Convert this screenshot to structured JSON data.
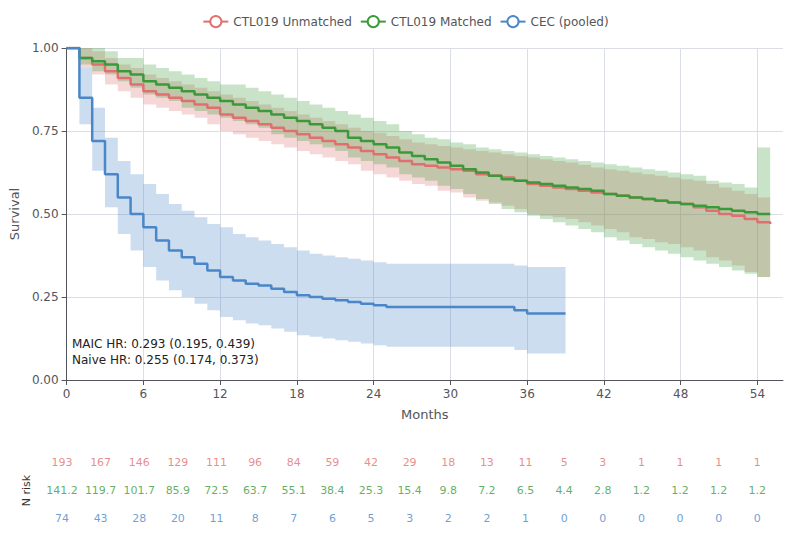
{
  "chart_data": {
    "type": "step",
    "xlabel": "Months",
    "ylabel": "Survival",
    "xlim": [
      0,
      56
    ],
    "ylim": [
      0.0,
      1.0
    ],
    "xticks": [
      0,
      6,
      12,
      18,
      24,
      30,
      36,
      42,
      48,
      54
    ],
    "yticks": [
      {
        "value": 0,
        "label": "0.00"
      },
      0.25,
      {
        "value": 0.5,
        "label": "0.50"
      },
      0.75,
      {
        "value": 1,
        "label": "1.00"
      }
    ],
    "grid": true,
    "annotation": "MAIC HR: 0.293 (0.195, 0.439)\nNaive HR: 0.255 (0.174, 0.373)",
    "risk_label": "N risk",
    "n_risk_x": [
      0,
      3,
      6,
      9,
      12,
      15,
      18,
      21,
      24,
      27,
      30,
      33,
      36,
      39,
      42,
      45,
      48,
      51,
      54
    ],
    "series": [
      {
        "name": "CTL019 Unmatched",
        "color": "#e07070",
        "x": [
          0,
          1,
          2,
          3,
          4,
          5,
          6,
          7,
          8,
          9,
          10,
          11,
          12,
          13,
          14,
          15,
          16,
          17,
          18,
          19,
          20,
          21,
          22,
          23,
          24,
          25,
          26,
          27,
          28,
          29,
          30,
          31,
          32,
          33,
          34,
          35,
          36,
          37,
          38,
          39,
          40,
          41,
          42,
          43,
          44,
          45,
          46,
          47,
          48,
          49,
          50,
          51,
          52,
          53,
          54,
          55
        ],
        "values": [
          1.0,
          0.97,
          0.95,
          0.93,
          0.91,
          0.89,
          0.87,
          0.86,
          0.85,
          0.84,
          0.83,
          0.82,
          0.8,
          0.79,
          0.78,
          0.77,
          0.76,
          0.75,
          0.74,
          0.73,
          0.72,
          0.71,
          0.7,
          0.69,
          0.68,
          0.67,
          0.66,
          0.65,
          0.645,
          0.64,
          0.635,
          0.63,
          0.62,
          0.615,
          0.61,
          0.6,
          0.59,
          0.585,
          0.58,
          0.575,
          0.57,
          0.565,
          0.56,
          0.555,
          0.55,
          0.545,
          0.54,
          0.535,
          0.53,
          0.52,
          0.51,
          0.5,
          0.495,
          0.485,
          0.475,
          0.47
        ],
        "lo": [
          1.0,
          0.94,
          0.92,
          0.89,
          0.87,
          0.85,
          0.83,
          0.82,
          0.81,
          0.8,
          0.79,
          0.77,
          0.75,
          0.74,
          0.73,
          0.72,
          0.71,
          0.7,
          0.69,
          0.68,
          0.67,
          0.66,
          0.65,
          0.63,
          0.62,
          0.61,
          0.6,
          0.59,
          0.585,
          0.57,
          0.565,
          0.55,
          0.54,
          0.535,
          0.525,
          0.515,
          0.5,
          0.495,
          0.49,
          0.485,
          0.475,
          0.465,
          0.455,
          0.445,
          0.43,
          0.425,
          0.415,
          0.41,
          0.4,
          0.39,
          0.37,
          0.36,
          0.345,
          0.325,
          0.31,
          0.3
        ],
        "hi": [
          1.0,
          1.0,
          0.99,
          0.97,
          0.95,
          0.94,
          0.92,
          0.91,
          0.9,
          0.89,
          0.88,
          0.87,
          0.86,
          0.85,
          0.84,
          0.83,
          0.82,
          0.81,
          0.8,
          0.79,
          0.78,
          0.77,
          0.76,
          0.75,
          0.745,
          0.735,
          0.725,
          0.715,
          0.71,
          0.705,
          0.7,
          0.695,
          0.69,
          0.685,
          0.68,
          0.675,
          0.67,
          0.665,
          0.66,
          0.655,
          0.648,
          0.64,
          0.635,
          0.63,
          0.625,
          0.62,
          0.615,
          0.61,
          0.605,
          0.6,
          0.59,
          0.58,
          0.57,
          0.56,
          0.55,
          0.545
        ],
        "n_risk": [
          193,
          167,
          146,
          129,
          111,
          96,
          84,
          59,
          42,
          29,
          18,
          13,
          11,
          5,
          3,
          1,
          1,
          1,
          1
        ]
      },
      {
        "name": "CTL019 Matched",
        "color": "#3a9a3a",
        "x": [
          0,
          1,
          2,
          3,
          4,
          5,
          6,
          7,
          8,
          9,
          10,
          11,
          12,
          13,
          14,
          15,
          16,
          17,
          18,
          19,
          20,
          21,
          22,
          23,
          24,
          25,
          26,
          27,
          28,
          29,
          30,
          31,
          32,
          33,
          34,
          35,
          36,
          37,
          38,
          39,
          40,
          41,
          42,
          43,
          44,
          45,
          46,
          47,
          48,
          49,
          50,
          51,
          52,
          53,
          54,
          55
        ],
        "values": [
          1.0,
          0.97,
          0.96,
          0.95,
          0.93,
          0.92,
          0.9,
          0.89,
          0.88,
          0.87,
          0.86,
          0.85,
          0.84,
          0.83,
          0.82,
          0.81,
          0.8,
          0.79,
          0.78,
          0.77,
          0.76,
          0.75,
          0.73,
          0.72,
          0.71,
          0.7,
          0.685,
          0.675,
          0.665,
          0.655,
          0.645,
          0.635,
          0.625,
          0.615,
          0.605,
          0.6,
          0.595,
          0.59,
          0.585,
          0.58,
          0.575,
          0.57,
          0.56,
          0.555,
          0.55,
          0.545,
          0.54,
          0.535,
          0.53,
          0.525,
          0.52,
          0.515,
          0.51,
          0.505,
          0.5,
          0.5
        ],
        "lo": [
          1.0,
          0.95,
          0.93,
          0.92,
          0.9,
          0.88,
          0.86,
          0.85,
          0.84,
          0.82,
          0.81,
          0.8,
          0.79,
          0.78,
          0.77,
          0.76,
          0.74,
          0.73,
          0.72,
          0.71,
          0.7,
          0.69,
          0.67,
          0.66,
          0.65,
          0.64,
          0.62,
          0.61,
          0.6,
          0.585,
          0.575,
          0.56,
          0.545,
          0.53,
          0.515,
          0.505,
          0.495,
          0.485,
          0.475,
          0.465,
          0.455,
          0.445,
          0.43,
          0.42,
          0.41,
          0.4,
          0.39,
          0.38,
          0.37,
          0.36,
          0.35,
          0.34,
          0.33,
          0.32,
          0.31,
          0.31
        ],
        "hi": [
          1.0,
          1.0,
          1.0,
          0.99,
          0.97,
          0.97,
          0.95,
          0.94,
          0.93,
          0.92,
          0.91,
          0.9,
          0.89,
          0.89,
          0.88,
          0.87,
          0.86,
          0.85,
          0.84,
          0.83,
          0.82,
          0.81,
          0.8,
          0.79,
          0.78,
          0.77,
          0.75,
          0.74,
          0.73,
          0.725,
          0.715,
          0.71,
          0.7,
          0.695,
          0.69,
          0.685,
          0.68,
          0.675,
          0.67,
          0.665,
          0.66,
          0.655,
          0.65,
          0.645,
          0.64,
          0.635,
          0.63,
          0.625,
          0.62,
          0.615,
          0.6,
          0.595,
          0.59,
          0.58,
          0.7,
          0.7
        ],
        "n_risk": [
          141.2,
          119.7,
          101.7,
          85.9,
          72.5,
          63.7,
          55.1,
          38.4,
          25.3,
          15.4,
          9.8,
          7.2,
          6.5,
          4.4,
          2.8,
          1.2,
          1.2,
          1.2,
          1.2
        ]
      },
      {
        "name": "CEC (pooled)",
        "color": "#4a86c8",
        "x": [
          0,
          1,
          2,
          3,
          4,
          5,
          6,
          7,
          8,
          9,
          10,
          11,
          12,
          13,
          14,
          15,
          16,
          17,
          18,
          19,
          20,
          21,
          22,
          23,
          24,
          25,
          26,
          27,
          28,
          29,
          30,
          31,
          32,
          33,
          34,
          35,
          36,
          37,
          38,
          39
        ],
        "values": [
          1.0,
          0.85,
          0.72,
          0.62,
          0.55,
          0.5,
          0.46,
          0.42,
          0.39,
          0.37,
          0.35,
          0.33,
          0.31,
          0.3,
          0.29,
          0.285,
          0.275,
          0.265,
          0.255,
          0.25,
          0.245,
          0.24,
          0.235,
          0.23,
          0.225,
          0.22,
          0.22,
          0.22,
          0.22,
          0.22,
          0.22,
          0.22,
          0.22,
          0.22,
          0.22,
          0.21,
          0.2,
          0.2,
          0.2,
          0.2
        ],
        "lo": [
          1.0,
          0.77,
          0.63,
          0.52,
          0.44,
          0.39,
          0.34,
          0.3,
          0.27,
          0.25,
          0.23,
          0.21,
          0.19,
          0.18,
          0.17,
          0.165,
          0.155,
          0.145,
          0.135,
          0.13,
          0.125,
          0.12,
          0.115,
          0.11,
          0.105,
          0.1,
          0.1,
          0.1,
          0.1,
          0.1,
          0.1,
          0.1,
          0.1,
          0.1,
          0.1,
          0.09,
          0.08,
          0.08,
          0.08,
          0.08
        ],
        "hi": [
          1.0,
          0.94,
          0.82,
          0.73,
          0.66,
          0.62,
          0.59,
          0.56,
          0.53,
          0.51,
          0.49,
          0.47,
          0.46,
          0.44,
          0.43,
          0.42,
          0.41,
          0.4,
          0.39,
          0.38,
          0.375,
          0.37,
          0.365,
          0.36,
          0.355,
          0.35,
          0.35,
          0.35,
          0.35,
          0.35,
          0.35,
          0.35,
          0.35,
          0.35,
          0.35,
          0.345,
          0.34,
          0.34,
          0.34,
          0.34
        ],
        "n_risk": [
          74,
          43,
          28,
          20,
          11,
          8,
          7,
          6,
          5,
          3,
          2,
          2,
          1,
          0,
          0,
          0,
          0,
          0,
          0
        ]
      }
    ]
  }
}
